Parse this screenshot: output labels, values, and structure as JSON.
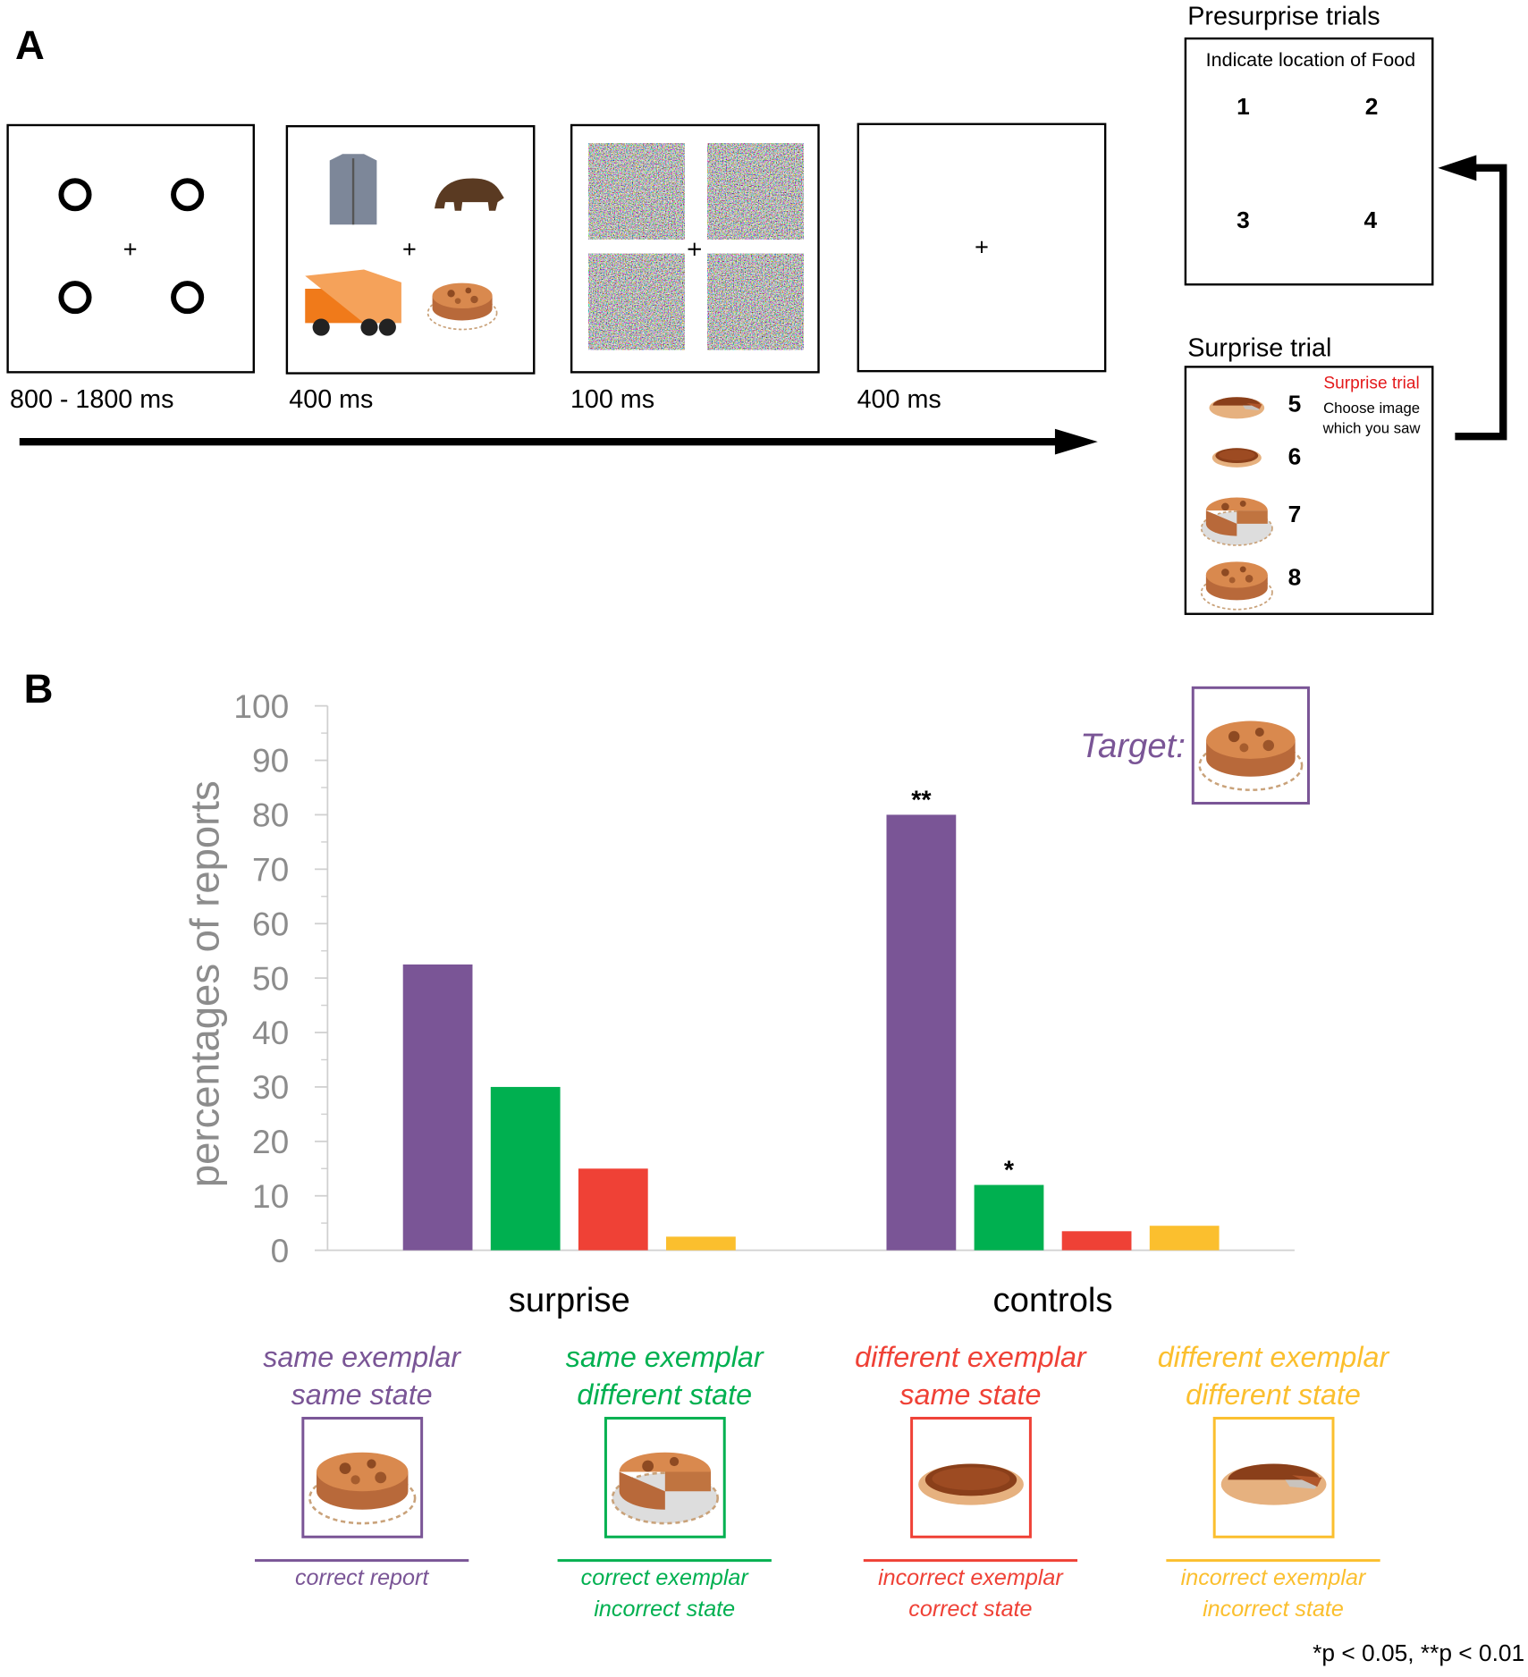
{
  "panels": {
    "a": "A",
    "b": "B"
  },
  "diagram": {
    "sequence": [
      {
        "duration": "800 - 1800 ms"
      },
      {
        "duration": "400 ms"
      },
      {
        "duration": "100 ms"
      },
      {
        "duration": "400 ms"
      }
    ],
    "presurprise": {
      "title": "Presurprise trials",
      "prompt": "Indicate location of Food",
      "locations": [
        "1",
        "2",
        "3",
        "4"
      ]
    },
    "surprise": {
      "title": "Surprise trial",
      "heading": "Surprise trial",
      "prompt": "Choose image\nwhich you saw",
      "options": [
        "5",
        "6",
        "7",
        "8"
      ]
    }
  },
  "chart_data": {
    "type": "bar",
    "ylabel": "percentages of reports",
    "categories": [
      "surprise",
      "controls"
    ],
    "series": [
      {
        "name": "same exemplar\nsame state",
        "report": "correct report",
        "color": "#7a5596",
        "values": [
          52.5,
          80
        ],
        "significance": [
          null,
          "**"
        ]
      },
      {
        "name": "same exemplar\ndifferent state",
        "report": "correct exemplar\nincorrect state",
        "color": "#00b050",
        "values": [
          30,
          12
        ],
        "significance": [
          null,
          "*"
        ]
      },
      {
        "name": "different exemplar\nsame state",
        "report": "incorrect exemplar\ncorrect state",
        "color": "#ef4136",
        "values": [
          15,
          3.5
        ],
        "significance": [
          null,
          null
        ]
      },
      {
        "name": "different exemplar\ndifferent state",
        "report": "incorrect exemplar\nincorrect state",
        "color": "#fbbf2e",
        "values": [
          2.5,
          4.5
        ],
        "significance": [
          null,
          null
        ]
      }
    ],
    "ylim": [
      0,
      100
    ],
    "yticks": [
      0,
      10,
      20,
      30,
      40,
      50,
      60,
      70,
      80,
      90,
      100
    ],
    "minor_yticks": [
      5,
      15,
      25,
      35,
      45,
      55,
      65,
      75,
      85,
      95
    ],
    "target_label": "Target:",
    "footnote": "*p < 0.05, **p < 0.01"
  }
}
